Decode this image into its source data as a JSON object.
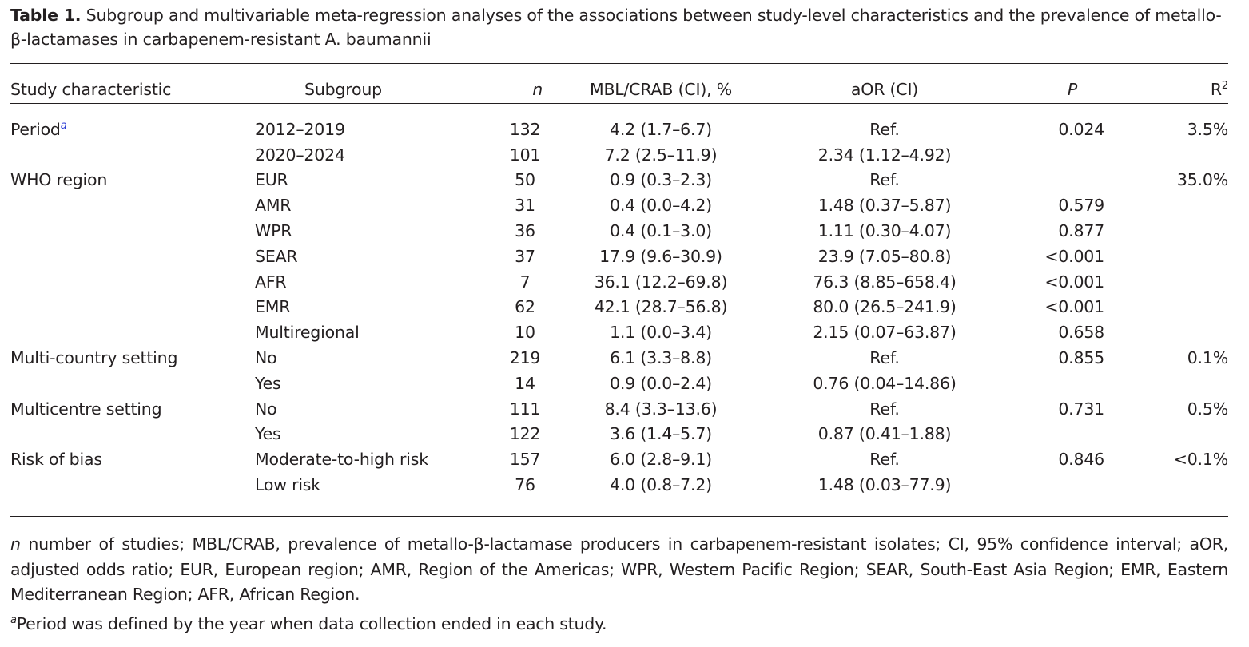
{
  "caption": {
    "label": "Table 1.",
    "text": "Subgroup and multivariable meta-regression analyses of the associations between study-level characteristics and the prevalence of metallo-β-lactamases in carbapenem-resistant A. baumannii"
  },
  "headers": {
    "characteristic": "Study characteristic",
    "subgroup": "Subgroup",
    "n": "n",
    "mbl": "MBL/CRAB (CI), %",
    "aor": "aOR (CI)",
    "p": "P",
    "r2": "R",
    "r2_sup": "2"
  },
  "rows": [
    {
      "characteristic": "Period",
      "sup": "a",
      "subgroup": "2012–2019",
      "n": "132",
      "mbl": "4.2 (1.7–6.7)",
      "aor": "Ref.",
      "p": "0.024",
      "r2": "3.5%"
    },
    {
      "characteristic": "",
      "sup": "",
      "subgroup": "2020–2024",
      "n": "101",
      "mbl": "7.2 (2.5–11.9)",
      "aor": "2.34 (1.12–4.92)",
      "p": "",
      "r2": ""
    },
    {
      "characteristic": "WHO region",
      "sup": "",
      "subgroup": "EUR",
      "n": "50",
      "mbl": "0.9 (0.3–2.3)",
      "aor": "Ref.",
      "p": "",
      "r2": "35.0%"
    },
    {
      "characteristic": "",
      "sup": "",
      "subgroup": "AMR",
      "n": "31",
      "mbl": "0.4 (0.0–4.2)",
      "aor": "1.48 (0.37–5.87)",
      "p": "0.579",
      "r2": ""
    },
    {
      "characteristic": "",
      "sup": "",
      "subgroup": "WPR",
      "n": "36",
      "mbl": "0.4 (0.1–3.0)",
      "aor": "1.11 (0.30–4.07)",
      "p": "0.877",
      "r2": ""
    },
    {
      "characteristic": "",
      "sup": "",
      "subgroup": "SEAR",
      "n": "37",
      "mbl": "17.9 (9.6–30.9)",
      "aor": "23.9 (7.05–80.8)",
      "p": "<0.001",
      "r2": ""
    },
    {
      "characteristic": "",
      "sup": "",
      "subgroup": "AFR",
      "n": "7",
      "mbl": "36.1 (12.2–69.8)",
      "aor": "76.3 (8.85–658.4)",
      "p": "<0.001",
      "r2": ""
    },
    {
      "characteristic": "",
      "sup": "",
      "subgroup": "EMR",
      "n": "62",
      "mbl": "42.1 (28.7–56.8)",
      "aor": "80.0 (26.5–241.9)",
      "p": "<0.001",
      "r2": ""
    },
    {
      "characteristic": "",
      "sup": "",
      "subgroup": "Multiregional",
      "n": "10",
      "mbl": "1.1 (0.0–3.4)",
      "aor": "2.15 (0.07–63.87)",
      "p": "0.658",
      "r2": ""
    },
    {
      "characteristic": "Multi-country setting",
      "sup": "",
      "subgroup": "No",
      "n": "219",
      "mbl": "6.1 (3.3–8.8)",
      "aor": "Ref.",
      "p": "0.855",
      "r2": "0.1%"
    },
    {
      "characteristic": "",
      "sup": "",
      "subgroup": "Yes",
      "n": "14",
      "mbl": "0.9 (0.0–2.4)",
      "aor": "0.76 (0.04–14.86)",
      "p": "",
      "r2": ""
    },
    {
      "characteristic": "Multicentre setting",
      "sup": "",
      "subgroup": "No",
      "n": "111",
      "mbl": "8.4 (3.3–13.6)",
      "aor": "Ref.",
      "p": "0.731",
      "r2": "0.5%"
    },
    {
      "characteristic": "",
      "sup": "",
      "subgroup": "Yes",
      "n": "122",
      "mbl": "3.6 (1.4–5.7)",
      "aor": "0.87 (0.41–1.88)",
      "p": "",
      "r2": ""
    },
    {
      "characteristic": "Risk of bias",
      "sup": "",
      "subgroup": "Moderate-to-high risk",
      "n": "157",
      "mbl": "6.0 (2.8–9.1)",
      "aor": "Ref.",
      "p": "0.846",
      "r2": "<0.1%"
    },
    {
      "characteristic": "",
      "sup": "",
      "subgroup": "Low risk",
      "n": "76",
      "mbl": "4.0 (0.8–7.2)",
      "aor": "1.48 (0.03–77.9)",
      "p": "",
      "r2": ""
    }
  ],
  "footnotes": {
    "abbrev_italic": "n",
    "abbrev_text": " number of studies; MBL/CRAB, prevalence of metallo-β-lactamase producers in carbapenem-resistant isolates; CI, 95% confidence interval; aOR, adjusted odds ratio; EUR, European region; AMR, Region of the Americas; WPR, Western Pacific Region; SEAR, South-East Asia Region; EMR, Eastern Mediterranean Region; AFR, African Region.",
    "note_sup": "a",
    "note_text": "Period was defined by the year when data collection ended in each study."
  },
  "colors": {
    "text": "#231f20",
    "footnote_link": "#2b3bd4"
  }
}
